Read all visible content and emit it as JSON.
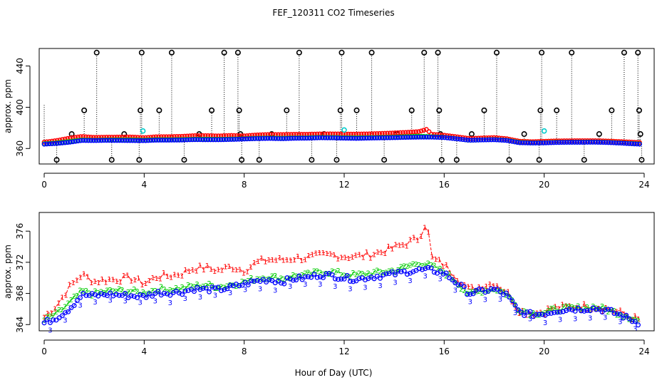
{
  "chart_data": [
    {
      "type": "scatter",
      "title": "FEF_120311  CO2 Timeseries",
      "xlabel": "",
      "ylabel": "approx. ppm",
      "xlim": [
        -0.2,
        24.4
      ],
      "ylim": [
        345,
        457
      ],
      "xticks": [
        "0",
        "4",
        "8",
        "12",
        "16",
        "20",
        "24"
      ],
      "yticks": [
        "360",
        "400",
        "440"
      ],
      "colors": {
        "series1": "#ff0000",
        "series2": "#00cc00",
        "series3": "#0000ff",
        "outlier": "#000000",
        "cyan": "#00cccc"
      },
      "outliers": [
        {
          "x": 0.0,
          "y": 403,
          "dir": "hi",
          "mark": false
        },
        {
          "x": 0.5,
          "y": 349,
          "dir": "lo",
          "mark": true
        },
        {
          "x": 1.1,
          "y": 374,
          "dir": "hi",
          "mark": true
        },
        {
          "x": 1.6,
          "y": 397,
          "dir": "hi",
          "mark": true
        },
        {
          "x": 2.1,
          "y": 453,
          "dir": "hi",
          "mark": true
        },
        {
          "x": 2.7,
          "y": 349,
          "dir": "lo",
          "mark": true
        },
        {
          "x": 3.2,
          "y": 374,
          "dir": "hi",
          "mark": true
        },
        {
          "x": 3.8,
          "y": 349,
          "dir": "lo",
          "mark": true
        },
        {
          "x": 3.85,
          "y": 397,
          "dir": "hi",
          "mark": true
        },
        {
          "x": 3.9,
          "y": 453,
          "dir": "hi",
          "mark": true
        },
        {
          "x": 4.6,
          "y": 397,
          "dir": "hi",
          "mark": true
        },
        {
          "x": 5.1,
          "y": 453,
          "dir": "hi",
          "mark": true
        },
        {
          "x": 5.6,
          "y": 349,
          "dir": "lo",
          "mark": true
        },
        {
          "x": 6.2,
          "y": 374,
          "dir": "hi",
          "mark": true
        },
        {
          "x": 6.7,
          "y": 397,
          "dir": "hi",
          "mark": true
        },
        {
          "x": 7.2,
          "y": 453,
          "dir": "hi",
          "mark": true
        },
        {
          "x": 7.75,
          "y": 453,
          "dir": "hi",
          "mark": true
        },
        {
          "x": 7.8,
          "y": 397,
          "dir": "hi",
          "mark": true
        },
        {
          "x": 7.85,
          "y": 374,
          "dir": "hi",
          "mark": true
        },
        {
          "x": 7.9,
          "y": 349,
          "dir": "lo",
          "mark": true
        },
        {
          "x": 8.6,
          "y": 349,
          "dir": "lo",
          "mark": true
        },
        {
          "x": 9.1,
          "y": 374,
          "dir": "hi",
          "mark": true
        },
        {
          "x": 9.7,
          "y": 397,
          "dir": "hi",
          "mark": true
        },
        {
          "x": 10.2,
          "y": 453,
          "dir": "hi",
          "mark": true
        },
        {
          "x": 10.7,
          "y": 349,
          "dir": "lo",
          "mark": true
        },
        {
          "x": 11.2,
          "y": 374,
          "dir": "hi",
          "mark": true
        },
        {
          "x": 11.7,
          "y": 349,
          "dir": "lo",
          "mark": true
        },
        {
          "x": 11.85,
          "y": 397,
          "dir": "hi",
          "mark": true
        },
        {
          "x": 11.9,
          "y": 453,
          "dir": "hi",
          "mark": true
        },
        {
          "x": 12.5,
          "y": 397,
          "dir": "hi",
          "mark": true
        },
        {
          "x": 13.1,
          "y": 453,
          "dir": "hi",
          "mark": true
        },
        {
          "x": 13.6,
          "y": 349,
          "dir": "lo",
          "mark": true
        },
        {
          "x": 14.1,
          "y": 374,
          "dir": "hi",
          "mark": true
        },
        {
          "x": 14.7,
          "y": 397,
          "dir": "hi",
          "mark": true
        },
        {
          "x": 15.2,
          "y": 453,
          "dir": "hi",
          "mark": true
        },
        {
          "x": 15.75,
          "y": 453,
          "dir": "hi",
          "mark": true
        },
        {
          "x": 15.8,
          "y": 397,
          "dir": "hi",
          "mark": true
        },
        {
          "x": 15.85,
          "y": 374,
          "dir": "hi",
          "mark": true
        },
        {
          "x": 15.9,
          "y": 349,
          "dir": "lo",
          "mark": true
        },
        {
          "x": 16.5,
          "y": 349,
          "dir": "lo",
          "mark": true
        },
        {
          "x": 17.1,
          "y": 374,
          "dir": "hi",
          "mark": true
        },
        {
          "x": 17.6,
          "y": 397,
          "dir": "hi",
          "mark": true
        },
        {
          "x": 18.1,
          "y": 453,
          "dir": "hi",
          "mark": true
        },
        {
          "x": 18.6,
          "y": 349,
          "dir": "lo",
          "mark": true
        },
        {
          "x": 19.2,
          "y": 374,
          "dir": "hi",
          "mark": true
        },
        {
          "x": 19.8,
          "y": 349,
          "dir": "lo",
          "mark": true
        },
        {
          "x": 19.85,
          "y": 397,
          "dir": "hi",
          "mark": true
        },
        {
          "x": 19.9,
          "y": 453,
          "dir": "hi",
          "mark": true
        },
        {
          "x": 20.5,
          "y": 397,
          "dir": "hi",
          "mark": true
        },
        {
          "x": 21.1,
          "y": 453,
          "dir": "hi",
          "mark": true
        },
        {
          "x": 21.6,
          "y": 349,
          "dir": "lo",
          "mark": true
        },
        {
          "x": 22.2,
          "y": 374,
          "dir": "hi",
          "mark": true
        },
        {
          "x": 22.7,
          "y": 397,
          "dir": "hi",
          "mark": true
        },
        {
          "x": 23.2,
          "y": 453,
          "dir": "hi",
          "mark": true
        },
        {
          "x": 23.75,
          "y": 453,
          "dir": "hi",
          "mark": true
        },
        {
          "x": 23.8,
          "y": 397,
          "dir": "hi",
          "mark": true
        },
        {
          "x": 23.85,
          "y": 374,
          "dir": "hi",
          "mark": true
        },
        {
          "x": 23.9,
          "y": 349,
          "dir": "lo",
          "mark": true
        }
      ],
      "cyan_points": [
        {
          "x": 3.95,
          "y": 377
        },
        {
          "x": 12.0,
          "y": 378
        },
        {
          "x": 20.0,
          "y": 377
        }
      ]
    },
    {
      "type": "scatter",
      "title": "",
      "xlabel": "Hour of Day (UTC)",
      "ylabel": "approx. ppm",
      "xlim": [
        -0.2,
        24.4
      ],
      "ylim": [
        363.2,
        378.4
      ],
      "xticks": [
        "0",
        "4",
        "8",
        "12",
        "16",
        "20",
        "24"
      ],
      "yticks": [
        "364",
        "368",
        "372",
        "376"
      ],
      "series": [
        {
          "name": "1",
          "color": "#ff0000",
          "x": [
            0.0,
            0.5,
            1.0,
            1.5,
            2.0,
            2.5,
            3.0,
            3.5,
            4.0,
            4.5,
            5.0,
            5.5,
            6.0,
            6.5,
            7.0,
            7.5,
            8.0,
            8.5,
            9.0,
            9.5,
            10.0,
            10.5,
            11.0,
            11.5,
            12.0,
            12.5,
            13.0,
            13.5,
            14.0,
            14.5,
            15.0,
            15.3,
            15.5,
            16.0,
            16.5,
            17.0,
            17.5,
            18.0,
            18.5,
            19.0,
            19.5,
            20.0,
            20.5,
            21.0,
            21.5,
            22.0,
            22.5,
            23.0,
            23.5,
            23.8
          ],
          "y": [
            365.0,
            366.5,
            368.8,
            370.5,
            369.6,
            369.8,
            369.9,
            370.0,
            369.3,
            370.2,
            370.3,
            370.6,
            371.3,
            371.3,
            371.0,
            371.5,
            371.0,
            372.0,
            372.4,
            372.3,
            372.6,
            372.6,
            372.9,
            373.0,
            372.8,
            372.8,
            373.0,
            373.4,
            373.9,
            374.5,
            375.2,
            377.4,
            372.6,
            371.7,
            370.2,
            368.5,
            369.0,
            369.4,
            368.3,
            365.9,
            365.4,
            365.8,
            366.2,
            366.3,
            366.4,
            366.4,
            366.1,
            365.6,
            365.0,
            364.6
          ]
        },
        {
          "name": "2",
          "color": "#00cc00",
          "x": [
            0.0,
            0.5,
            1.0,
            1.5,
            2.0,
            2.5,
            3.0,
            3.5,
            4.0,
            4.5,
            5.0,
            5.5,
            6.0,
            6.5,
            7.0,
            7.5,
            8.0,
            8.5,
            9.0,
            9.5,
            10.0,
            10.5,
            11.0,
            11.5,
            12.0,
            12.5,
            13.0,
            13.5,
            14.0,
            14.5,
            15.0,
            15.5,
            16.0,
            16.5,
            17.0,
            17.5,
            18.0,
            18.5,
            19.0,
            19.5,
            20.0,
            20.5,
            21.0,
            21.5,
            22.0,
            22.5,
            23.0,
            23.5,
            23.8
          ],
          "y": [
            364.6,
            365.4,
            366.8,
            368.3,
            368.0,
            368.3,
            368.4,
            368.3,
            368.1,
            368.6,
            368.6,
            368.7,
            369.0,
            369.1,
            368.9,
            369.2,
            369.5,
            370.0,
            370.2,
            370.0,
            370.3,
            370.4,
            370.8,
            370.8,
            370.5,
            370.4,
            370.6,
            370.8,
            371.0,
            371.5,
            372.0,
            371.5,
            370.8,
            369.5,
            367.9,
            368.4,
            368.7,
            368.0,
            366.0,
            365.5,
            365.6,
            366.0,
            366.1,
            366.2,
            366.3,
            366.0,
            365.5,
            364.9,
            364.5
          ]
        },
        {
          "name": "3",
          "color": "#0000ff",
          "x": [
            0.0,
            0.5,
            1.0,
            1.5,
            2.0,
            2.5,
            3.0,
            3.5,
            4.0,
            4.5,
            5.0,
            5.5,
            6.0,
            6.5,
            7.0,
            7.5,
            8.0,
            8.5,
            9.0,
            9.5,
            10.0,
            10.5,
            11.0,
            11.5,
            12.0,
            12.5,
            13.0,
            13.5,
            14.0,
            14.5,
            15.0,
            15.5,
            16.0,
            16.5,
            17.0,
            17.5,
            18.0,
            18.5,
            19.0,
            19.5,
            20.0,
            20.5,
            21.0,
            21.5,
            22.0,
            22.5,
            23.0,
            23.5,
            23.8
          ],
          "y": [
            364.2,
            364.9,
            366.0,
            367.8,
            367.7,
            367.9,
            367.8,
            367.7,
            367.6,
            368.1,
            368.1,
            368.2,
            368.6,
            368.5,
            368.5,
            368.8,
            369.2,
            369.6,
            369.8,
            369.5,
            369.9,
            370.0,
            370.4,
            370.3,
            370.0,
            369.8,
            370.1,
            370.3,
            370.5,
            370.8,
            371.0,
            371.0,
            370.6,
            369.4,
            368.0,
            368.3,
            368.5,
            367.8,
            365.6,
            365.3,
            365.4,
            365.8,
            366.0,
            366.0,
            366.1,
            365.8,
            365.3,
            364.6,
            364.2
          ]
        }
      ]
    }
  ]
}
